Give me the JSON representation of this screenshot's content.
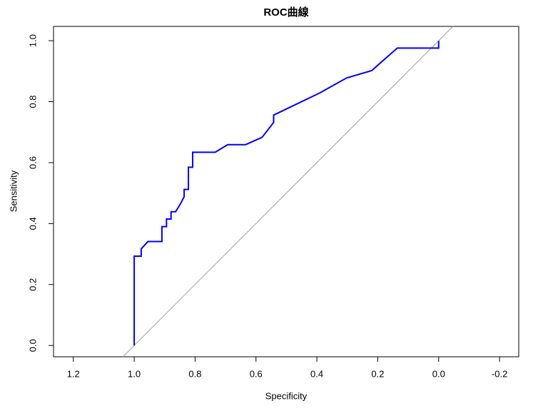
{
  "chart_data": {
    "type": "line",
    "title": "ROC曲線",
    "x_label": "Specificity",
    "y_label": "Sensitivity",
    "x": [
      1.0,
      1.0,
      0.977,
      0.977,
      0.955,
      0.909,
      0.909,
      0.894,
      0.894,
      0.879,
      0.879,
      0.864,
      0.849,
      0.836,
      0.836,
      0.822,
      0.822,
      0.808,
      0.808,
      0.734,
      0.693,
      0.634,
      0.58,
      0.542,
      0.542,
      0.39,
      0.302,
      0.22,
      0.136,
      0.0,
      0.0
    ],
    "values": [
      0.0,
      0.293,
      0.293,
      0.317,
      0.341,
      0.341,
      0.39,
      0.39,
      0.415,
      0.415,
      0.439,
      0.439,
      0.463,
      0.488,
      0.512,
      0.512,
      0.585,
      0.585,
      0.634,
      0.634,
      0.659,
      0.659,
      0.683,
      0.732,
      0.756,
      0.829,
      0.878,
      0.902,
      0.976,
      0.976,
      1.0
    ],
    "color": "#0000ff",
    "diagonal": true,
    "diagonal_color": "#a0a0a0",
    "xlim": [
      1.265,
      -0.263
    ],
    "xticks": [
      1.2,
      {
        "value": 1.0,
        "label": "1.0"
      },
      0.8,
      0.6,
      0.4,
      0.2,
      {
        "value": 0.0,
        "label": "0.0"
      },
      -0.2
    ],
    "ylim": [
      -0.037,
      1.047
    ],
    "yticks": [
      {
        "value": 0.0,
        "label": "0.0"
      },
      0.2,
      0.4,
      0.6,
      0.8,
      {
        "value": 1.0,
        "label": "1.0"
      }
    ]
  }
}
